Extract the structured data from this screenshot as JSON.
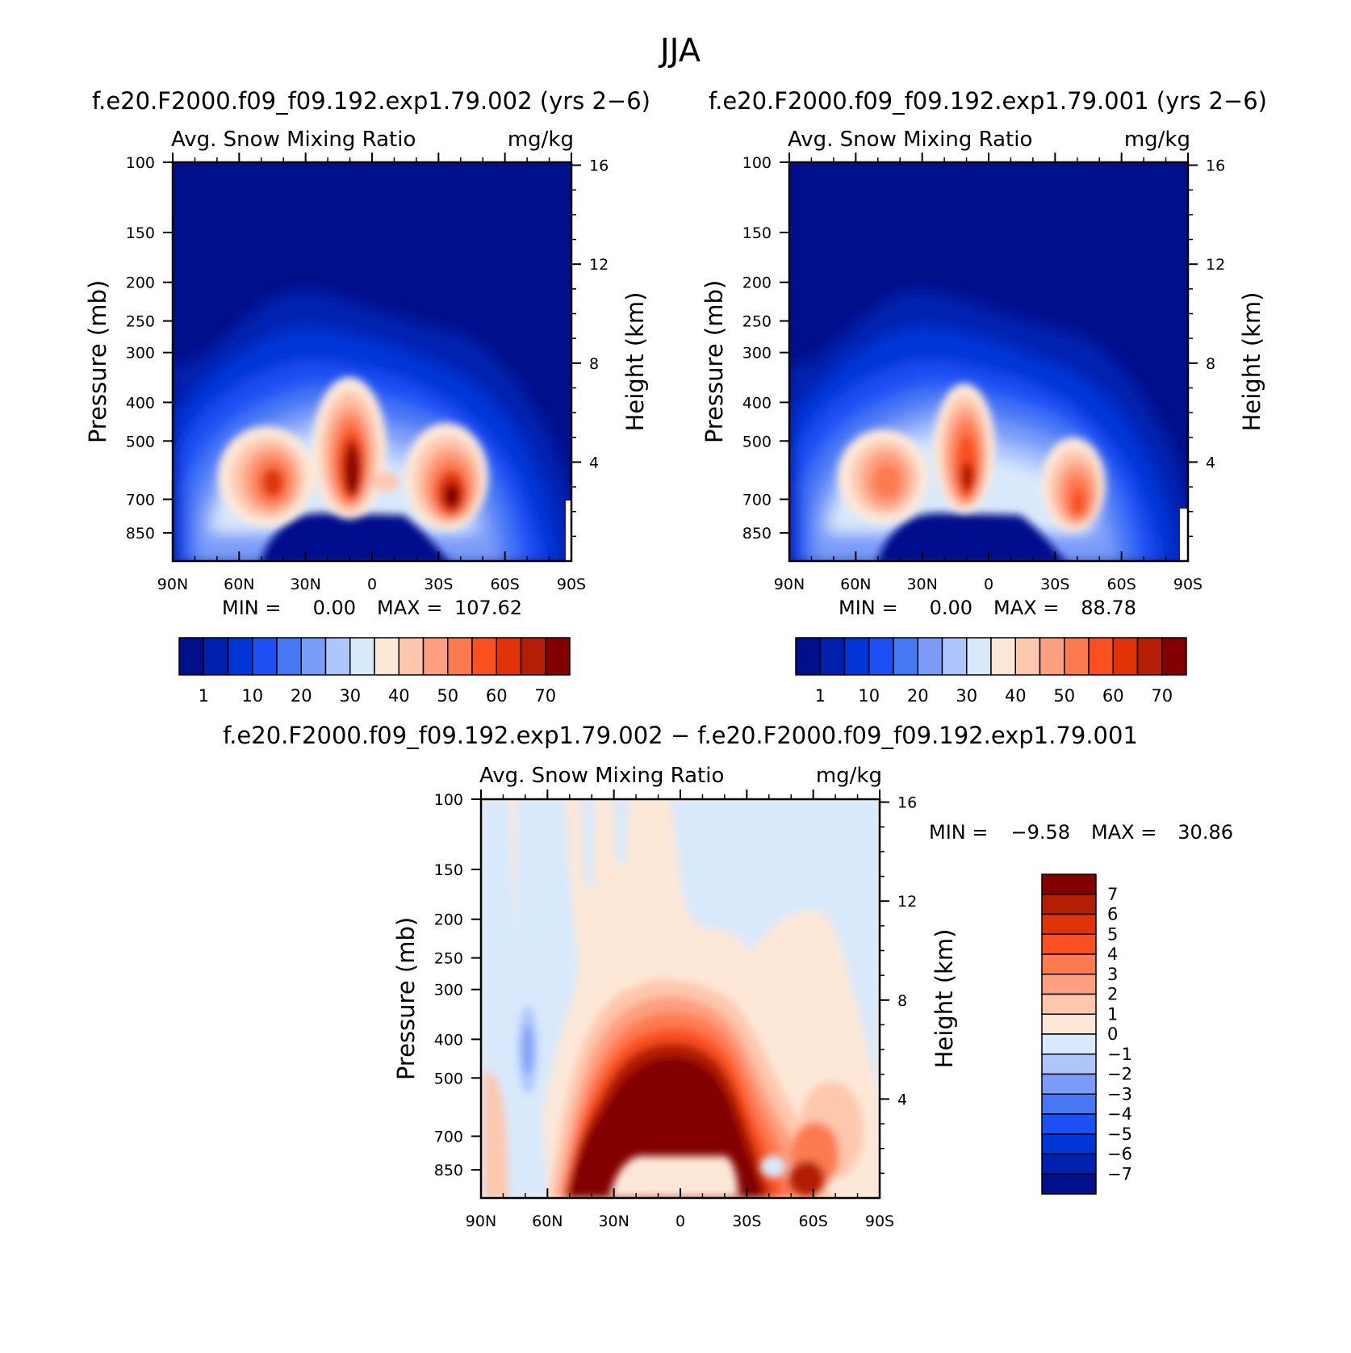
{
  "figure_title": "JJA",
  "chart_data": [
    {
      "type": "heatmap",
      "panel": "top-left",
      "case_title": "f.e20.F2000.f09_f09.192.exp1.79.002 (yrs 2−6)",
      "variable": "Avg. Snow Mixing Ratio",
      "units": "mg/kg",
      "xlabel": "",
      "ylabel": "Pressure (mb)",
      "y2label": "Height (km)",
      "x_ticks": [
        "90N",
        "60N",
        "30N",
        "0",
        "30S",
        "60S",
        "90S"
      ],
      "x_values": [
        90,
        60,
        30,
        0,
        -30,
        -60,
        -90
      ],
      "y_ticks": [
        "100",
        "150",
        "200",
        "250",
        "300",
        "400",
        "500",
        "700",
        "850"
      ],
      "y_values": [
        100,
        150,
        200,
        250,
        300,
        400,
        500,
        700,
        850
      ],
      "y2_ticks": [
        "16",
        "12",
        "8",
        "4"
      ],
      "ylim": [
        100,
        1000
      ],
      "y_scale": "log",
      "min_text": "MIN =",
      "min_value": "0.00",
      "max_text": "MAX =",
      "max_value": "107.62",
      "features": [
        {
          "lat": 45,
          "p": 560,
          "value": 65
        },
        {
          "lat": 10,
          "p": 500,
          "value": 80
        },
        {
          "lat": -35,
          "p": 600,
          "value": 75
        }
      ],
      "colorbar": {
        "orientation": "horizontal",
        "colors": [
          "#00108c",
          "#0020b0",
          "#0035d8",
          "#1c50f4",
          "#4678f4",
          "#7a9cf8",
          "#aec6fc",
          "#d8e9fc",
          "#fde8d8",
          "#fdc7ad",
          "#fd9f80",
          "#fc7a50",
          "#fa5020",
          "#e03408",
          "#b41e04",
          "#820000"
        ],
        "labels": [
          "1",
          "10",
          "20",
          "30",
          "40",
          "50",
          "60",
          "70"
        ]
      }
    },
    {
      "type": "heatmap",
      "panel": "top-right",
      "case_title": "f.e20.F2000.f09_f09.192.exp1.79.001 (yrs 2−6)",
      "variable": "Avg. Snow Mixing Ratio",
      "units": "mg/kg",
      "xlabel": "",
      "ylabel": "Pressure (mb)",
      "y2label": "Height (km)",
      "x_ticks": [
        "90N",
        "60N",
        "30N",
        "0",
        "30S",
        "60S",
        "90S"
      ],
      "x_values": [
        90,
        60,
        30,
        0,
        -30,
        -60,
        -90
      ],
      "y_ticks": [
        "100",
        "150",
        "200",
        "250",
        "300",
        "400",
        "500",
        "700",
        "850"
      ],
      "y_values": [
        100,
        150,
        200,
        250,
        300,
        400,
        500,
        700,
        850
      ],
      "y2_ticks": [
        "16",
        "12",
        "8",
        "4"
      ],
      "ylim": [
        100,
        1000
      ],
      "y_scale": "log",
      "min_text": "MIN =",
      "min_value": "0.00",
      "max_text": "MAX =",
      "max_value": "88.78",
      "features": [
        {
          "lat": 45,
          "p": 560,
          "value": 50
        },
        {
          "lat": 10,
          "p": 520,
          "value": 68
        },
        {
          "lat": -35,
          "p": 620,
          "value": 58
        }
      ],
      "colorbar": {
        "orientation": "horizontal",
        "colors": [
          "#00108c",
          "#0020b0",
          "#0035d8",
          "#1c50f4",
          "#4678f4",
          "#7a9cf8",
          "#aec6fc",
          "#d8e9fc",
          "#fde8d8",
          "#fdc7ad",
          "#fd9f80",
          "#fc7a50",
          "#fa5020",
          "#e03408",
          "#b41e04",
          "#820000"
        ],
        "labels": [
          "1",
          "10",
          "20",
          "30",
          "40",
          "50",
          "60",
          "70"
        ]
      }
    },
    {
      "type": "heatmap",
      "panel": "bottom",
      "case_title": "f.e20.F2000.f09_f09.192.exp1.79.002 − f.e20.F2000.f09_f09.192.exp1.79.001",
      "variable": "Avg. Snow Mixing Ratio",
      "units": "mg/kg",
      "xlabel": "",
      "ylabel": "Pressure (mb)",
      "y2label": "Height (km)",
      "x_ticks": [
        "90N",
        "60N",
        "30N",
        "0",
        "30S",
        "60S",
        "90S"
      ],
      "x_values": [
        90,
        60,
        30,
        0,
        -30,
        -60,
        -90
      ],
      "y_ticks": [
        "100",
        "150",
        "200",
        "250",
        "300",
        "400",
        "500",
        "700",
        "850"
      ],
      "y_values": [
        100,
        150,
        200,
        250,
        300,
        400,
        500,
        700,
        850
      ],
      "y2_ticks": [
        "16",
        "12",
        "8",
        "4"
      ],
      "ylim": [
        100,
        1000
      ],
      "y_scale": "log",
      "min_text": "MIN =",
      "min_value": "−9.58",
      "max_text": "MAX =",
      "max_value": "30.86",
      "features": [
        {
          "lat": 20,
          "p": 500,
          "value": 9
        },
        {
          "lat": -20,
          "p": 520,
          "value": 9
        },
        {
          "lat": 45,
          "p": 700,
          "value": 7
        },
        {
          "lat": 70,
          "p": 480,
          "value": -3
        }
      ],
      "colorbar": {
        "orientation": "vertical",
        "colors": [
          "#820000",
          "#b41e04",
          "#e03408",
          "#fa5020",
          "#fc7a50",
          "#fd9f80",
          "#fdc7ad",
          "#fde8d8",
          "#d8e9fc",
          "#aec6fc",
          "#7a9cf8",
          "#4678f4",
          "#1c50f4",
          "#0035d8",
          "#0020b0",
          "#00108c"
        ],
        "labels": [
          "7",
          "6",
          "5",
          "4",
          "3",
          "2",
          "1",
          "0",
          "−1",
          "−2",
          "−3",
          "−4",
          "−5",
          "−6",
          "−7"
        ]
      }
    }
  ]
}
